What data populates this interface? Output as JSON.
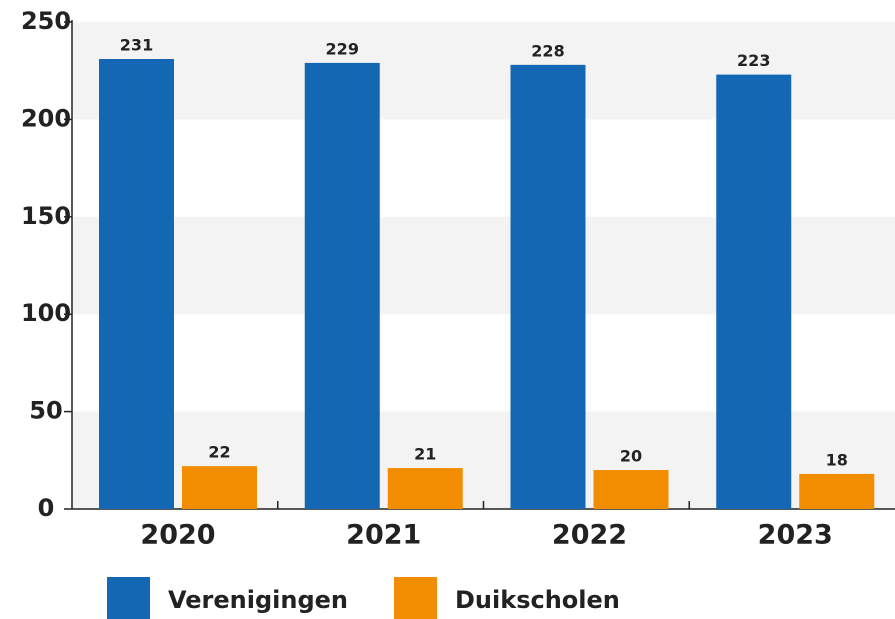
{
  "chart_data": {
    "type": "bar",
    "categories": [
      "2020",
      "2021",
      "2022",
      "2023"
    ],
    "series": [
      {
        "name": "Verenigingen",
        "color": "#1467b3",
        "values": [
          231,
          229,
          228,
          223
        ]
      },
      {
        "name": "Duikscholen",
        "color": "#f28c00",
        "values": [
          22,
          21,
          20,
          18
        ]
      }
    ],
    "ylim": [
      0,
      250
    ],
    "yticks": [
      0,
      50,
      100,
      150,
      200,
      250
    ],
    "grid": true
  }
}
